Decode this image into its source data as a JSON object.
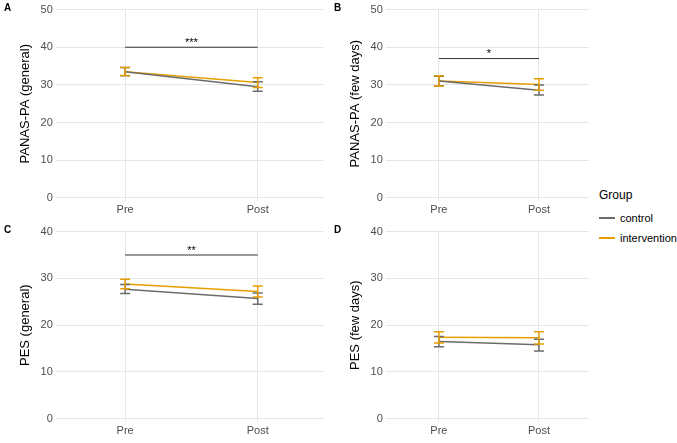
{
  "legend_title": "Group",
  "legend": "right",
  "chart_data": [
    {
      "type": "line",
      "title": "A",
      "y_label": "PANAS-PA (general)",
      "categories": [
        "Pre",
        "Post"
      ],
      "series": [
        {
          "name": "control",
          "color": "#6b6b6b",
          "values": [
            33.5,
            29.5
          ],
          "lower": [
            32.4,
            28.3
          ],
          "upper": [
            34.6,
            30.8
          ]
        },
        {
          "name": "intervention",
          "color": "#E69F00",
          "values": [
            33.5,
            30.6
          ],
          "lower": [
            32.5,
            29.3
          ],
          "upper": [
            34.6,
            31.9
          ]
        }
      ],
      "ylim": [
        0,
        50
      ],
      "yticks": [
        0,
        10,
        20,
        30,
        40,
        50
      ],
      "grid": true,
      "annotations": [
        {
          "text": "***",
          "from": "Pre",
          "to": "Post",
          "y": 40
        }
      ]
    },
    {
      "type": "line",
      "title": "B",
      "y_label": "PANAS-PA (few days)",
      "categories": [
        "Pre",
        "Post"
      ],
      "series": [
        {
          "name": "control",
          "color": "#6b6b6b",
          "values": [
            31,
            28.6
          ],
          "lower": [
            29.7,
            27.3
          ],
          "upper": [
            32.3,
            30
          ]
        },
        {
          "name": "intervention",
          "color": "#E69F00",
          "values": [
            31,
            30.1
          ],
          "lower": [
            29.7,
            28.6
          ],
          "upper": [
            32.4,
            31.6
          ]
        }
      ],
      "ylim": [
        0,
        50
      ],
      "yticks": [
        0,
        10,
        20,
        30,
        40,
        50
      ],
      "grid": true,
      "annotations": [
        {
          "text": "*",
          "from": "Pre",
          "to": "Post",
          "y": 37
        }
      ]
    },
    {
      "type": "line",
      "title": "C",
      "y_label": "PES (general)",
      "categories": [
        "Pre",
        "Post"
      ],
      "series": [
        {
          "name": "control",
          "color": "#6b6b6b",
          "values": [
            27.7,
            25.7
          ],
          "lower": [
            26.8,
            24.5
          ],
          "upper": [
            28.7,
            26.9
          ]
        },
        {
          "name": "intervention",
          "color": "#E69F00",
          "values": [
            28.8,
            27.2
          ],
          "lower": [
            27.8,
            26
          ],
          "upper": [
            29.8,
            28.4
          ]
        }
      ],
      "ylim": [
        0,
        40
      ],
      "yticks": [
        0,
        10,
        20,
        30,
        40
      ],
      "grid": true,
      "annotations": [
        {
          "text": "**",
          "from": "Pre",
          "to": "Post",
          "y": 35
        }
      ]
    },
    {
      "type": "line",
      "title": "D",
      "y_label": "PES (few days)",
      "categories": [
        "Pre",
        "Post"
      ],
      "series": [
        {
          "name": "control",
          "color": "#6b6b6b",
          "values": [
            16.5,
            15.8
          ],
          "lower": [
            15.4,
            14.5
          ],
          "upper": [
            17.6,
            17
          ]
        },
        {
          "name": "intervention",
          "color": "#E69F00",
          "values": [
            17.4,
            17.3
          ],
          "lower": [
            16.2,
            16
          ],
          "upper": [
            18.6,
            18.6
          ]
        }
      ],
      "ylim": [
        0,
        40
      ],
      "yticks": [
        0,
        10,
        20,
        30,
        40
      ],
      "grid": true
    }
  ]
}
